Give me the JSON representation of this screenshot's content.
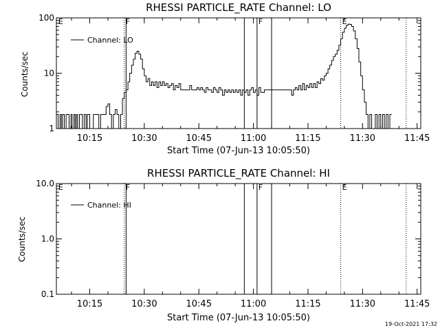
{
  "chart_data": [
    {
      "type": "line",
      "title": "RHESSI PARTICLE_RATE Channel: LO",
      "xlabel": "Start Time (07-Jun-13 10:05:50)",
      "ylabel": "Counts/sec",
      "yscale": "log",
      "ylim": [
        1,
        100
      ],
      "ytick_labels": [
        "1",
        "10",
        "100"
      ],
      "xlim": [
        "10:05:50",
        "11:46:00"
      ],
      "xtick_labels": [
        "10:15",
        "10:30",
        "10:45",
        "11:00",
        "11:15",
        "11:30",
        "11:45"
      ],
      "legend": {
        "position": "top-left",
        "entries": [
          "Channel: LO"
        ]
      },
      "series": [
        {
          "name": "Channel: LO",
          "points": [
            [
              "10:05:50",
              1.8
            ],
            [
              "10:06:20",
              1.0
            ],
            [
              "10:06:50",
              1.8
            ],
            [
              "10:07:10",
              1.0
            ],
            [
              "10:07:30",
              1.8
            ],
            [
              "10:08:00",
              1.0
            ],
            [
              "10:08:30",
              1.8
            ],
            [
              "10:09:00",
              1.8
            ],
            [
              "10:09:20",
              1.0
            ],
            [
              "10:09:50",
              1.8
            ],
            [
              "10:10:10",
              1.0
            ],
            [
              "10:10:40",
              1.8
            ],
            [
              "10:11:00",
              1.0
            ],
            [
              "10:11:20",
              1.8
            ],
            [
              "10:11:40",
              1.0
            ],
            [
              "10:12:10",
              1.8
            ],
            [
              "10:12:40",
              1.8
            ],
            [
              "10:13:00",
              1.0
            ],
            [
              "10:13:30",
              1.8
            ],
            [
              "10:14:00",
              1.0
            ],
            [
              "10:14:20",
              1.8
            ],
            [
              "10:15:00",
              1.0
            ],
            [
              "10:15:30",
              1.0
            ],
            [
              "10:16:00",
              1.8
            ],
            [
              "10:17:00",
              1.8
            ],
            [
              "10:17:30",
              1.0
            ],
            [
              "10:18:00",
              1.8
            ],
            [
              "10:18:30",
              1.8
            ],
            [
              "10:19:00",
              1.8
            ],
            [
              "10:19:30",
              2.5
            ],
            [
              "10:20:00",
              2.8
            ],
            [
              "10:20:30",
              1.8
            ],
            [
              "10:21:00",
              1.0
            ],
            [
              "10:21:30",
              1.8
            ],
            [
              "10:22:00",
              2.2
            ],
            [
              "10:22:30",
              1.8
            ],
            [
              "10:23:00",
              1.0
            ],
            [
              "10:23:30",
              1.8
            ],
            [
              "10:24:00",
              3.5
            ],
            [
              "10:24:30",
              4.5
            ],
            [
              "10:25:00",
              5.0
            ],
            [
              "10:25:30",
              7.0
            ],
            [
              "10:26:00",
              10.0
            ],
            [
              "10:26:30",
              14.0
            ],
            [
              "10:27:00",
              18.0
            ],
            [
              "10:27:30",
              23.0
            ],
            [
              "10:28:00",
              25.0
            ],
            [
              "10:28:30",
              22.0
            ],
            [
              "10:29:00",
              18.0
            ],
            [
              "10:29:30",
              12.0
            ],
            [
              "10:30:00",
              9.0
            ],
            [
              "10:30:30",
              7.0
            ],
            [
              "10:31:00",
              8.0
            ],
            [
              "10:31:30",
              6.0
            ],
            [
              "10:32:00",
              7.0
            ],
            [
              "10:32:30",
              6.0
            ],
            [
              "10:33:00",
              7.0
            ],
            [
              "10:33:30",
              5.5
            ],
            [
              "10:34:00",
              7.0
            ],
            [
              "10:34:30",
              6.0
            ],
            [
              "10:35:00",
              7.0
            ],
            [
              "10:35:30",
              6.0
            ],
            [
              "10:36:00",
              6.5
            ],
            [
              "10:36:30",
              5.5
            ],
            [
              "10:37:00",
              6.0
            ],
            [
              "10:37:30",
              6.5
            ],
            [
              "10:38:00",
              5.0
            ],
            [
              "10:38:30",
              6.0
            ],
            [
              "10:39:00",
              5.5
            ],
            [
              "10:39:30",
              6.5
            ],
            [
              "10:40:00",
              5.0
            ],
            [
              "10:40:30",
              5.0
            ],
            [
              "10:41:00",
              5.0
            ],
            [
              "10:42:00",
              5.0
            ],
            [
              "10:42:30",
              6.0
            ],
            [
              "10:43:00",
              5.0
            ],
            [
              "10:44:00",
              5.0
            ],
            [
              "10:44:30",
              5.5
            ],
            [
              "10:45:00",
              5.0
            ],
            [
              "10:45:30",
              5.5
            ],
            [
              "10:46:00",
              5.0
            ],
            [
              "10:46:30",
              4.5
            ],
            [
              "10:47:00",
              5.5
            ],
            [
              "10:47:30",
              5.0
            ],
            [
              "10:48:00",
              5.0
            ],
            [
              "10:48:30",
              4.5
            ],
            [
              "10:49:00",
              5.5
            ],
            [
              "10:49:30",
              5.0
            ],
            [
              "10:50:00",
              4.5
            ],
            [
              "10:50:30",
              5.5
            ],
            [
              "10:51:00",
              5.0
            ],
            [
              "10:51:30",
              4.0
            ],
            [
              "10:52:00",
              5.0
            ],
            [
              "10:52:30",
              4.5
            ],
            [
              "10:53:00",
              5.0
            ],
            [
              "10:53:30",
              4.5
            ],
            [
              "10:54:00",
              5.0
            ],
            [
              "10:54:30",
              4.5
            ],
            [
              "10:55:00",
              5.0
            ],
            [
              "10:55:30",
              4.5
            ],
            [
              "10:56:00",
              5.0
            ],
            [
              "10:56:30",
              4.0
            ],
            [
              "10:57:00",
              5.0
            ],
            [
              "10:57:30",
              4.5
            ],
            [
              "10:58:00",
              5.0
            ],
            [
              "10:58:30",
              4.0
            ],
            [
              "10:59:00",
              5.0
            ],
            [
              "10:59:30",
              5.5
            ],
            [
              "11:00:00",
              4.5
            ],
            [
              "11:00:30",
              5.0
            ],
            [
              "11:01:00",
              4.0
            ],
            [
              "11:01:30",
              5.5
            ],
            [
              "11:02:00",
              4.5
            ],
            [
              "11:03:00",
              5.0
            ],
            [
              "11:04:00",
              5.0
            ],
            [
              "11:05:00",
              5.0
            ],
            [
              "11:06:00",
              5.0
            ],
            [
              "11:07:00",
              5.0
            ],
            [
              "11:08:00",
              5.0
            ],
            [
              "11:09:00",
              5.0
            ],
            [
              "11:10:00",
              5.0
            ],
            [
              "11:10:30",
              4.0
            ],
            [
              "11:11:00",
              5.0
            ],
            [
              "11:11:30",
              5.5
            ],
            [
              "11:12:00",
              5.0
            ],
            [
              "11:12:30",
              6.0
            ],
            [
              "11:13:00",
              5.0
            ],
            [
              "11:13:30",
              6.5
            ],
            [
              "11:14:00",
              5.0
            ],
            [
              "11:14:30",
              6.0
            ],
            [
              "11:15:00",
              5.5
            ],
            [
              "11:15:30",
              6.5
            ],
            [
              "11:16:00",
              5.5
            ],
            [
              "11:16:30",
              6.5
            ],
            [
              "11:17:00",
              5.5
            ],
            [
              "11:17:30",
              7.0
            ],
            [
              "11:18:00",
              6.5
            ],
            [
              "11:18:30",
              8.0
            ],
            [
              "11:19:00",
              7.5
            ],
            [
              "11:19:30",
              9.0
            ],
            [
              "11:20:00",
              10.0
            ],
            [
              "11:20:30",
              12.0
            ],
            [
              "11:21:00",
              14.0
            ],
            [
              "11:21:30",
              17.0
            ],
            [
              "11:22:00",
              20.0
            ],
            [
              "11:22:30",
              22.0
            ],
            [
              "11:23:00",
              26.0
            ],
            [
              "11:23:30",
              32.0
            ],
            [
              "11:24:00",
              42.0
            ],
            [
              "11:24:30",
              55.0
            ],
            [
              "11:25:00",
              65.0
            ],
            [
              "11:25:30",
              73.0
            ],
            [
              "11:26:00",
              77.0
            ],
            [
              "11:26:30",
              76.0
            ],
            [
              "11:27:00",
              70.0
            ],
            [
              "11:27:30",
              58.0
            ],
            [
              "11:28:00",
              42.0
            ],
            [
              "11:28:30",
              28.0
            ],
            [
              "11:29:00",
              16.0
            ],
            [
              "11:29:30",
              9.0
            ],
            [
              "11:30:00",
              5.0
            ],
            [
              "11:30:30",
              3.0
            ],
            [
              "11:31:00",
              1.8
            ],
            [
              "11:31:30",
              1.0
            ],
            [
              "11:32:00",
              1.8
            ],
            [
              "11:32:30",
              1.0
            ],
            [
              "11:33:00",
              1.0
            ],
            [
              "11:33:30",
              1.8
            ],
            [
              "11:34:00",
              1.0
            ],
            [
              "11:34:30",
              1.8
            ],
            [
              "11:35:00",
              1.0
            ],
            [
              "11:35:30",
              1.8
            ],
            [
              "11:36:00",
              1.0
            ],
            [
              "11:36:30",
              1.8
            ],
            [
              "11:37:00",
              1.0
            ],
            [
              "11:37:30",
              1.8
            ],
            [
              "11:38:00",
              1.8
            ]
          ]
        }
      ],
      "markers": [
        {
          "label": "E",
          "time": "10:06:00",
          "style": "none"
        },
        {
          "label": "F",
          "time": "10:24:30",
          "style": "dotted"
        },
        {
          "label": "",
          "time": "10:25:00",
          "style": "solid"
        },
        {
          "label": "",
          "time": "10:57:30",
          "style": "solid"
        },
        {
          "label": "F",
          "time": "11:01:00",
          "style": "solid"
        },
        {
          "label": "",
          "time": "11:05:00",
          "style": "solid"
        },
        {
          "label": "E",
          "time": "11:24:00",
          "style": "dotted"
        },
        {
          "label": "",
          "time": "11:42:00",
          "style": "dotted"
        }
      ]
    },
    {
      "type": "line",
      "title": "RHESSI PARTICLE_RATE Channel: HI",
      "xlabel": "Start Time (07-Jun-13 10:05:50)",
      "ylabel": "Counts/sec",
      "yscale": "log",
      "ylim": [
        0.1,
        10
      ],
      "ytick_labels": [
        "0.1",
        "1.0",
        "10.0"
      ],
      "xlim": [
        "10:05:50",
        "11:46:00"
      ],
      "xtick_labels": [
        "10:15",
        "10:30",
        "10:45",
        "11:00",
        "11:15",
        "11:30",
        "11:45"
      ],
      "legend": {
        "position": "top-left",
        "entries": [
          "Channel: HI"
        ]
      },
      "series": [
        {
          "name": "Channel: HI",
          "points": []
        }
      ],
      "markers": [
        {
          "label": "E",
          "time": "10:06:00",
          "style": "none"
        },
        {
          "label": "F",
          "time": "10:24:30",
          "style": "dotted"
        },
        {
          "label": "",
          "time": "10:25:00",
          "style": "solid"
        },
        {
          "label": "",
          "time": "10:57:30",
          "style": "solid"
        },
        {
          "label": "F",
          "time": "11:01:00",
          "style": "solid"
        },
        {
          "label": "",
          "time": "11:05:00",
          "style": "solid"
        },
        {
          "label": "E",
          "time": "11:24:00",
          "style": "dotted"
        },
        {
          "label": "",
          "time": "11:42:00",
          "style": "dotted"
        }
      ]
    }
  ],
  "footer": {
    "timestamp": "19-Oct-2021 17:32"
  },
  "colors": {
    "background": "#ffffff",
    "foreground": "#000000"
  }
}
